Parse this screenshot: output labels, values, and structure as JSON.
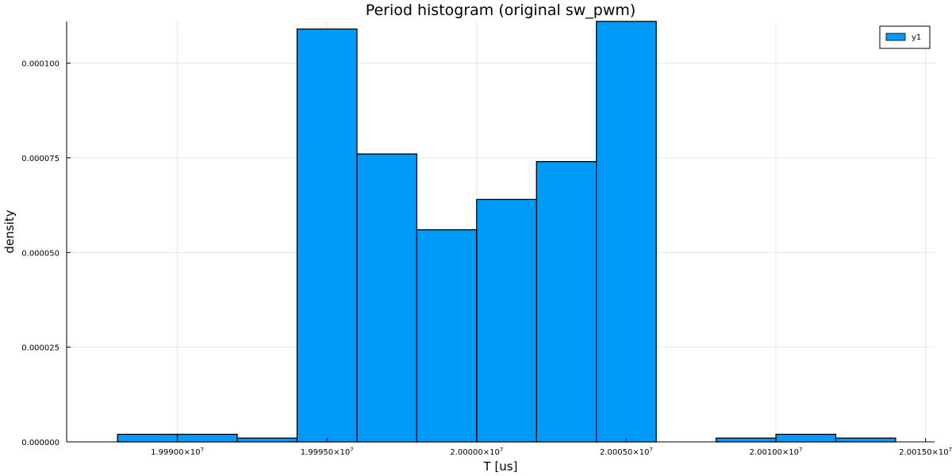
{
  "chart_data": {
    "type": "bar",
    "title": "Period histogram (original sw_pwm)",
    "xlabel": "T [us]",
    "ylabel": "density",
    "x_scale_mantissa_format": "×10",
    "x_exponent": "7",
    "xticks": [
      {
        "value": 19990000,
        "label": "1.99900"
      },
      {
        "value": 19995000,
        "label": "1.99950"
      },
      {
        "value": 20000000,
        "label": "2.00000"
      },
      {
        "value": 20005000,
        "label": "2.00050"
      },
      {
        "value": 20010000,
        "label": "2.00100"
      },
      {
        "value": 20015000,
        "label": "2.00150"
      }
    ],
    "yticks": [
      {
        "value": 0,
        "label": "0.000000"
      },
      {
        "value": 2.5e-05,
        "label": "0.000025"
      },
      {
        "value": 5e-05,
        "label": "0.000050"
      },
      {
        "value": 7.5e-05,
        "label": "0.000075"
      },
      {
        "value": 0.0001,
        "label": "0.000100"
      }
    ],
    "xlim": [
      19986300,
      20015300
    ],
    "ylim": [
      0,
      0.000111
    ],
    "grid": true,
    "legend_position": "top-right",
    "series": [
      {
        "name": "y1",
        "color": "#009af9",
        "bin_edges": [
          19988000,
          19990000,
          19992000,
          19994000,
          19996000,
          19998000,
          20000000,
          20002000,
          20004000,
          20006000,
          20008000,
          20010000,
          20012000,
          20014000
        ],
        "values": [
          2e-06,
          2e-06,
          1e-06,
          0.000109,
          7.6e-05,
          5.6e-05,
          6.4e-05,
          7.4e-05,
          0.000111,
          0.0,
          1e-06,
          2e-06,
          1e-06
        ]
      }
    ]
  }
}
